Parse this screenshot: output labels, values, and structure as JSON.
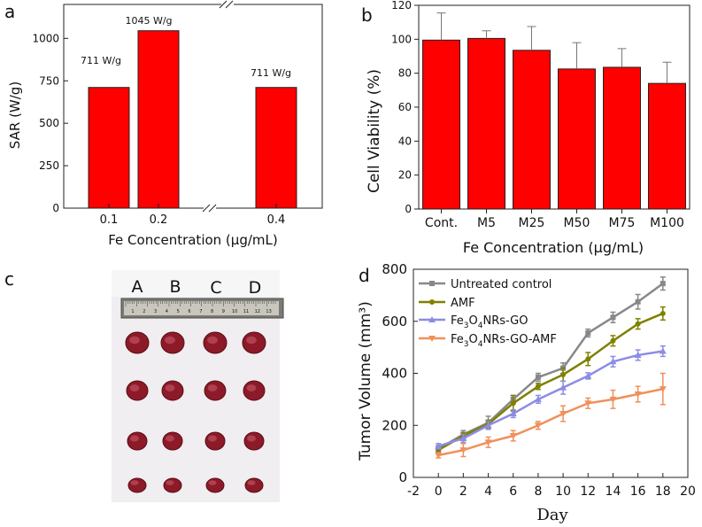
{
  "figure": {
    "panel_labels": {
      "a": "a",
      "b": "b",
      "c": "c",
      "d": "d"
    }
  },
  "chart_data": [
    {
      "panel": "a",
      "type": "bar",
      "categories": [
        "0.1",
        "0.2",
        "0.4"
      ],
      "values": [
        711,
        1045,
        711
      ],
      "data_labels": [
        "711 W/g",
        "1045 W/g",
        "711 W/g"
      ],
      "title": "",
      "xlabel": "Fe Concentration (μg/mL)",
      "ylabel": "SAR (W/g)",
      "ylim": [
        0,
        1200
      ],
      "yticks": [
        0,
        250,
        500,
        750,
        1000
      ],
      "axis_break": true,
      "bar_color": "#ff0000"
    },
    {
      "panel": "b",
      "type": "bar",
      "categories": [
        "Cont.",
        "M5",
        "M25",
        "M50",
        "M75",
        "M100"
      ],
      "values": [
        99.5,
        100.5,
        93.5,
        82.5,
        83.5,
        74.0
      ],
      "errors": [
        16,
        4.5,
        14,
        15.5,
        11,
        12.5
      ],
      "title": "",
      "xlabel": "Fe Concentration (μg/mL)",
      "ylabel": "Cell Viability (%)",
      "ylim": [
        0,
        120
      ],
      "yticks": [
        0,
        20,
        40,
        60,
        80,
        100,
        120
      ],
      "bar_color": "#ff0000"
    },
    {
      "panel": "d",
      "type": "line",
      "x": [
        0,
        2,
        4,
        6,
        8,
        10,
        12,
        14,
        16,
        18
      ],
      "series": [
        {
          "name": "Untreated control",
          "color": "#888888",
          "values": [
            110,
            165,
            210,
            300,
            385,
            420,
            555,
            615,
            675,
            745
          ],
          "errors": [
            12,
            15,
            25,
            15,
            15,
            20,
            15,
            20,
            28,
            25
          ]
        },
        {
          "name": "AMF",
          "color": "#808000",
          "values": [
            105,
            160,
            205,
            285,
            350,
            395,
            455,
            525,
            590,
            630
          ],
          "errors": [
            10,
            12,
            15,
            30,
            12,
            25,
            25,
            20,
            20,
            25
          ]
        },
        {
          "name": "Fe₃O₄NRs-GO",
          "color": "#8c8ce6",
          "values": [
            120,
            150,
            200,
            245,
            300,
            345,
            390,
            445,
            470,
            485
          ],
          "errors": [
            10,
            15,
            15,
            15,
            15,
            25,
            12,
            20,
            20,
            20
          ]
        },
        {
          "name": "Fe₃O₄NRs-GO-AMF",
          "color": "#f0905a",
          "values": [
            85,
            105,
            135,
            160,
            200,
            245,
            285,
            300,
            320,
            340
          ],
          "errors": [
            10,
            25,
            20,
            20,
            15,
            30,
            20,
            35,
            30,
            60
          ]
        }
      ],
      "legend": {
        "labels": [
          "Untreated control",
          "AMF",
          "Fe3O4NRs-GO",
          "Fe3O4NRs-GO-AMF"
        ],
        "placement": "top-left"
      },
      "title": "",
      "xlabel": "Day",
      "ylabel": "Tumor Volume (mm³)",
      "xlim": [
        -2,
        20
      ],
      "ylim": [
        0,
        800
      ],
      "xticks": [
        -2,
        0,
        2,
        4,
        6,
        8,
        10,
        12,
        14,
        16,
        18,
        20
      ],
      "yticks": [
        0,
        200,
        400,
        600,
        800
      ]
    }
  ],
  "photo_c": {
    "column_labels": [
      "A",
      "B",
      "C",
      "D"
    ],
    "ruler_numbers": [
      "1",
      "2",
      "3",
      "4",
      "5",
      "6",
      "7",
      "8",
      "9",
      "10",
      "11",
      "12",
      "13"
    ]
  }
}
